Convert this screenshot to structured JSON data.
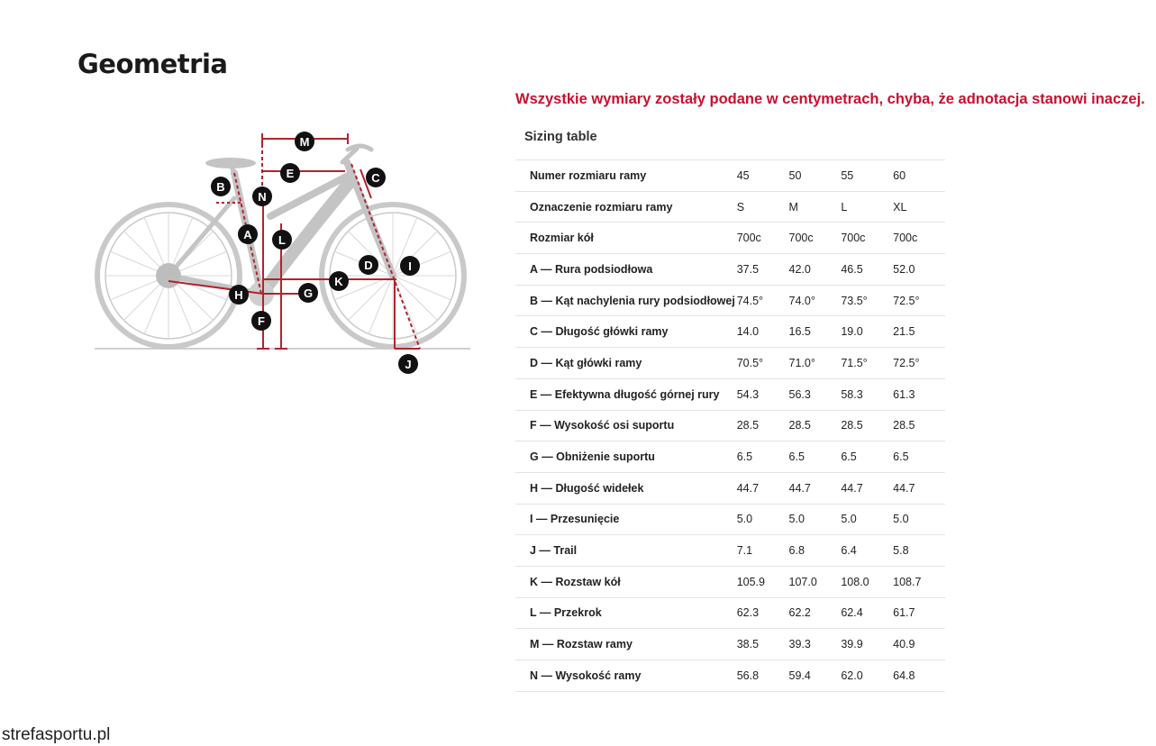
{
  "page_title": "Geometria",
  "units_note": "Wszystkie wymiary zostały podane w centymetrach, chyba, że adnotacja stanowi inaczej.",
  "table_caption": "Sizing table",
  "diagram_letters": {
    "a": "A",
    "b": "B",
    "c": "C",
    "d": "D",
    "e": "E",
    "f": "F",
    "g": "G",
    "h": "H",
    "i": "I",
    "j": "J",
    "k": "K",
    "l": "L",
    "m": "M",
    "n": "N"
  },
  "rows": [
    {
      "label": "Numer rozmiaru ramy",
      "values": [
        "45",
        "50",
        "55",
        "60"
      ]
    },
    {
      "label": "Oznaczenie rozmiaru ramy",
      "values": [
        "S",
        "M",
        "L",
        "XL"
      ]
    },
    {
      "label": "Rozmiar kół",
      "values": [
        "700c",
        "700c",
        "700c",
        "700c"
      ]
    },
    {
      "label": "A — Rura podsiodłowa",
      "values": [
        "37.5",
        "42.0",
        "46.5",
        "52.0"
      ]
    },
    {
      "label": "B — Kąt nachylenia rury podsiodłowej",
      "values": [
        "74.5°",
        "74.0°",
        "73.5°",
        "72.5°"
      ]
    },
    {
      "label": "C — Długość główki ramy",
      "values": [
        "14.0",
        "16.5",
        "19.0",
        "21.5"
      ]
    },
    {
      "label": "D — Kąt główki ramy",
      "values": [
        "70.5°",
        "71.0°",
        "71.5°",
        "72.5°"
      ]
    },
    {
      "label": "E — Efektywna długość górnej rury",
      "values": [
        "54.3",
        "56.3",
        "58.3",
        "61.3"
      ]
    },
    {
      "label": "F — Wysokość osi suportu",
      "values": [
        "28.5",
        "28.5",
        "28.5",
        "28.5"
      ]
    },
    {
      "label": "G — Obniżenie suportu",
      "values": [
        "6.5",
        "6.5",
        "6.5",
        "6.5"
      ]
    },
    {
      "label": "H — Długość widełek",
      "values": [
        "44.7",
        "44.7",
        "44.7",
        "44.7"
      ]
    },
    {
      "label": "I — Przesunięcie",
      "values": [
        "5.0",
        "5.0",
        "5.0",
        "5.0"
      ]
    },
    {
      "label": "J — Trail",
      "values": [
        "7.1",
        "6.8",
        "6.4",
        "5.8"
      ]
    },
    {
      "label": "K — Rozstaw kół",
      "values": [
        "105.9",
        "107.0",
        "108.0",
        "108.7"
      ]
    },
    {
      "label": "L — Przekrok",
      "values": [
        "62.3",
        "62.2",
        "62.4",
        "61.7"
      ]
    },
    {
      "label": "M — Rozstaw ramy",
      "values": [
        "38.5",
        "39.3",
        "39.9",
        "40.9"
      ]
    },
    {
      "label": "N — Wysokość ramy",
      "values": [
        "56.8",
        "59.4",
        "62.0",
        "64.8"
      ]
    }
  ],
  "watermark": "strefasportu.pl",
  "colors": {
    "accent": "#c8102e",
    "dimension": "#b0242f",
    "bike": "#c9c9c9"
  }
}
